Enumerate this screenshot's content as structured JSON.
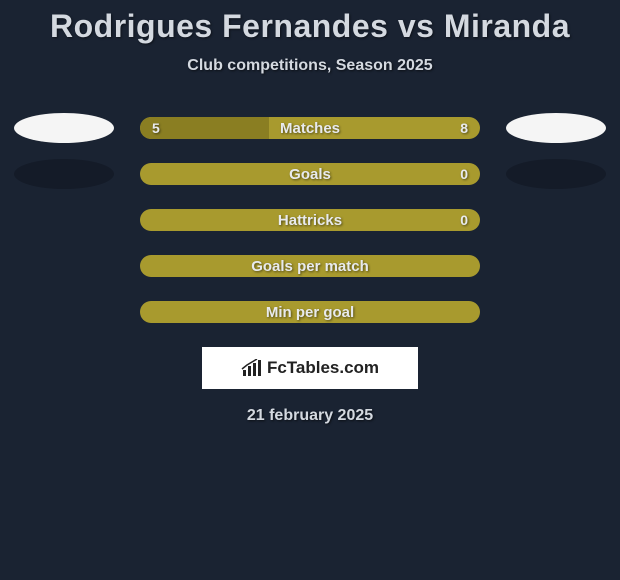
{
  "title": "Rodrigues Fernandes vs Miranda",
  "subtitle": "Club competitions, Season 2025",
  "date": "21 february 2025",
  "logo": "FcTables.com",
  "colors": {
    "page_bg": "#1a2332",
    "bar_bg": "#a89a2e",
    "bar_segment": "#8a7e22",
    "text": "#d4d9e0",
    "ellipse_white": "#f5f5f5",
    "ellipse_dark": "#141b28",
    "logo_bg": "#ffffff"
  },
  "stats": [
    {
      "label": "Matches",
      "left_value": "5",
      "right_value": "8",
      "left_pct": 38,
      "has_ellipses": true,
      "left_ellipse": "white",
      "right_ellipse": "white"
    },
    {
      "label": "Goals",
      "left_value": "",
      "right_value": "0",
      "left_pct": 0,
      "has_ellipses": true,
      "left_ellipse": "dark",
      "right_ellipse": "dark"
    },
    {
      "label": "Hattricks",
      "left_value": "",
      "right_value": "0",
      "left_pct": 0,
      "has_ellipses": false
    },
    {
      "label": "Goals per match",
      "left_value": "",
      "right_value": "",
      "left_pct": 0,
      "has_ellipses": false
    },
    {
      "label": "Min per goal",
      "left_value": "",
      "right_value": "",
      "left_pct": 0,
      "has_ellipses": false
    }
  ]
}
